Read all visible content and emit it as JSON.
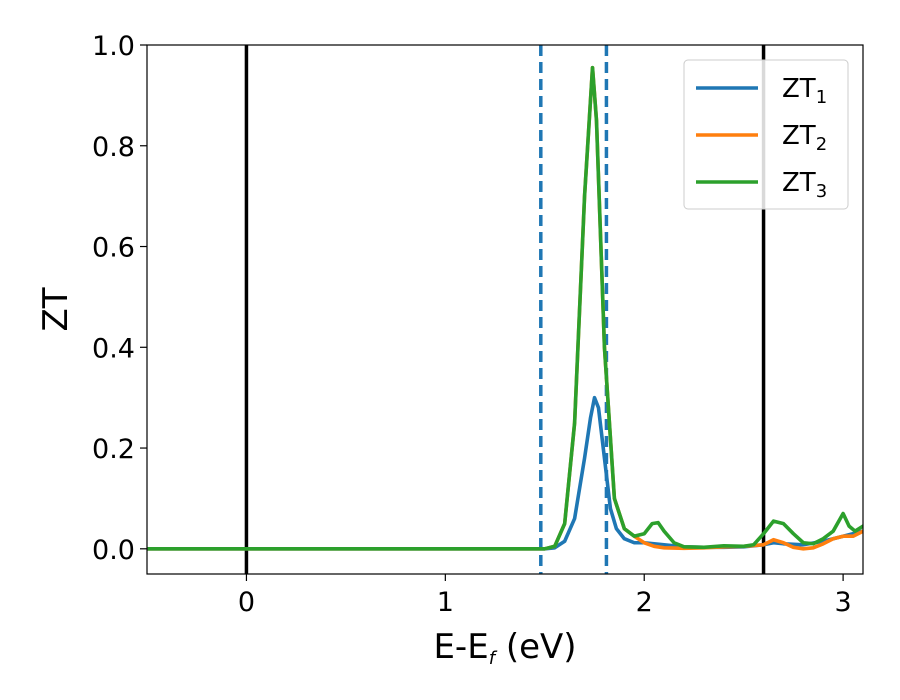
{
  "chart_data": {
    "type": "line",
    "xlabel": "E-E",
    "xlabel_sub": "f",
    "xlabel_unit": " (eV)",
    "ylabel": "ZT",
    "xlim": [
      -0.5,
      3.1
    ],
    "ylim": [
      -0.05,
      1.0
    ],
    "x_ticks": [
      0,
      1,
      2,
      3
    ],
    "x_tick_labels": [
      "0",
      "1",
      "2",
      "3"
    ],
    "y_ticks": [
      0.0,
      0.2,
      0.4,
      0.6,
      0.8,
      1.0
    ],
    "y_tick_labels": [
      "0.0",
      "0.2",
      "0.4",
      "0.6",
      "0.8",
      "1.0"
    ],
    "grid": false,
    "legend_position": "top-right",
    "vlines": [
      {
        "x": 0.0,
        "style": "solid",
        "color": "#000000"
      },
      {
        "x": 2.6,
        "style": "solid",
        "color": "#000000"
      },
      {
        "x": 1.48,
        "style": "dashed",
        "color": "#1f77b4"
      },
      {
        "x": 1.81,
        "style": "dashed",
        "color": "#1f77b4"
      }
    ],
    "series": [
      {
        "name": "ZT",
        "name_sub": "1",
        "color": "#1f77b4",
        "points": [
          [
            -0.5,
            0
          ],
          [
            1.5,
            0
          ],
          [
            1.55,
            0.002
          ],
          [
            1.6,
            0.015
          ],
          [
            1.65,
            0.06
          ],
          [
            1.7,
            0.18
          ],
          [
            1.73,
            0.26
          ],
          [
            1.75,
            0.3
          ],
          [
            1.77,
            0.28
          ],
          [
            1.8,
            0.18
          ],
          [
            1.83,
            0.08
          ],
          [
            1.86,
            0.04
          ],
          [
            1.9,
            0.02
          ],
          [
            1.95,
            0.012
          ],
          [
            2.0,
            0.012
          ],
          [
            2.1,
            0.008
          ],
          [
            2.2,
            0.004
          ],
          [
            2.3,
            0.003
          ],
          [
            2.4,
            0.003
          ],
          [
            2.5,
            0.004
          ],
          [
            2.6,
            0.008
          ],
          [
            2.65,
            0.012
          ],
          [
            2.7,
            0.01
          ],
          [
            2.8,
            0.008
          ],
          [
            2.9,
            0.015
          ],
          [
            3.0,
            0.025
          ],
          [
            3.1,
            0.035
          ]
        ]
      },
      {
        "name": "ZT",
        "name_sub": "2",
        "color": "#ff7f0e",
        "points": [
          [
            -0.5,
            0
          ],
          [
            1.5,
            0
          ],
          [
            1.55,
            0.005
          ],
          [
            1.6,
            0.05
          ],
          [
            1.65,
            0.25
          ],
          [
            1.7,
            0.7
          ],
          [
            1.74,
            0.955
          ],
          [
            1.76,
            0.85
          ],
          [
            1.8,
            0.4
          ],
          [
            1.85,
            0.1
          ],
          [
            1.9,
            0.04
          ],
          [
            1.95,
            0.025
          ],
          [
            2.0,
            0.012
          ],
          [
            2.05,
            0.005
          ],
          [
            2.1,
            0.002
          ],
          [
            2.2,
            0.001
          ],
          [
            2.3,
            0.002
          ],
          [
            2.4,
            0.004
          ],
          [
            2.5,
            0.005
          ],
          [
            2.6,
            0.008
          ],
          [
            2.65,
            0.018
          ],
          [
            2.7,
            0.012
          ],
          [
            2.75,
            0.003
          ],
          [
            2.8,
            0.0
          ],
          [
            2.85,
            0.002
          ],
          [
            2.9,
            0.01
          ],
          [
            2.95,
            0.02
          ],
          [
            3.0,
            0.025
          ],
          [
            3.05,
            0.025
          ],
          [
            3.1,
            0.035
          ]
        ]
      },
      {
        "name": "ZT",
        "name_sub": "3",
        "color": "#2ca02c",
        "points": [
          [
            -0.5,
            0
          ],
          [
            1.5,
            0
          ],
          [
            1.55,
            0.005
          ],
          [
            1.6,
            0.05
          ],
          [
            1.65,
            0.25
          ],
          [
            1.7,
            0.7
          ],
          [
            1.74,
            0.955
          ],
          [
            1.76,
            0.85
          ],
          [
            1.8,
            0.4
          ],
          [
            1.85,
            0.1
          ],
          [
            1.9,
            0.04
          ],
          [
            1.95,
            0.025
          ],
          [
            2.0,
            0.03
          ],
          [
            2.04,
            0.05
          ],
          [
            2.07,
            0.052
          ],
          [
            2.1,
            0.035
          ],
          [
            2.15,
            0.012
          ],
          [
            2.2,
            0.004
          ],
          [
            2.3,
            0.003
          ],
          [
            2.4,
            0.006
          ],
          [
            2.5,
            0.005
          ],
          [
            2.55,
            0.008
          ],
          [
            2.6,
            0.03
          ],
          [
            2.65,
            0.055
          ],
          [
            2.7,
            0.05
          ],
          [
            2.75,
            0.03
          ],
          [
            2.8,
            0.012
          ],
          [
            2.85,
            0.01
          ],
          [
            2.9,
            0.02
          ],
          [
            2.95,
            0.035
          ],
          [
            3.0,
            0.07
          ],
          [
            3.03,
            0.045
          ],
          [
            3.06,
            0.035
          ],
          [
            3.1,
            0.045
          ]
        ]
      }
    ]
  }
}
